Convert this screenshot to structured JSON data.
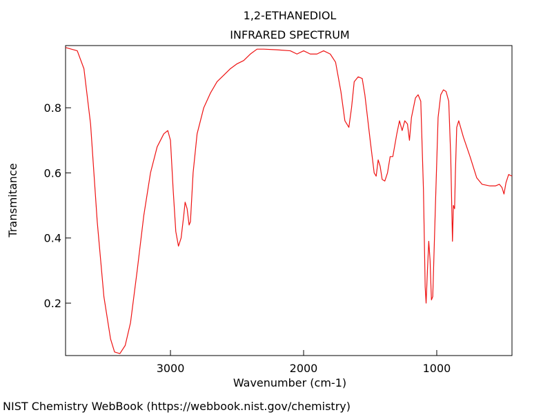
{
  "chart_data": {
    "type": "line",
    "title": "1,2-ETHANEDIOL",
    "subtitle": "INFRARED SPECTRUM",
    "x_label": "Wavenumber (cm-1)",
    "y_label": "Transmitance",
    "xlim": [
      3788,
      435
    ],
    "ylim": [
      0.039,
      0.991
    ],
    "xticks": [
      3000,
      2000,
      1000
    ],
    "yticks": [
      0.2,
      0.4,
      0.6,
      0.8
    ],
    "grid": false,
    "series": [
      {
        "color": "#ee1111",
        "x": [
          3788,
          3700,
          3650,
          3600,
          3550,
          3500,
          3450,
          3420,
          3380,
          3340,
          3300,
          3250,
          3200,
          3150,
          3100,
          3050,
          3020,
          3000,
          2980,
          2960,
          2940,
          2920,
          2900,
          2890,
          2875,
          2860,
          2850,
          2830,
          2800,
          2750,
          2700,
          2650,
          2600,
          2550,
          2500,
          2450,
          2400,
          2350,
          2300,
          2200,
          2100,
          2050,
          2000,
          1950,
          1900,
          1850,
          1800,
          1760,
          1720,
          1690,
          1660,
          1640,
          1620,
          1590,
          1560,
          1540,
          1500,
          1470,
          1455,
          1440,
          1425,
          1410,
          1390,
          1370,
          1350,
          1330,
          1300,
          1280,
          1260,
          1240,
          1220,
          1205,
          1190,
          1160,
          1140,
          1120,
          1100,
          1087,
          1080,
          1070,
          1060,
          1050,
          1040,
          1030,
          1010,
          990,
          970,
          950,
          930,
          910,
          895,
          882,
          875,
          866,
          860,
          850,
          835,
          800,
          750,
          700,
          660,
          600,
          560,
          530,
          510,
          495,
          480,
          460,
          435
        ],
        "values": [
          0.985,
          0.975,
          0.92,
          0.75,
          0.45,
          0.22,
          0.09,
          0.05,
          0.045,
          0.07,
          0.14,
          0.3,
          0.47,
          0.6,
          0.68,
          0.72,
          0.73,
          0.7,
          0.55,
          0.42,
          0.375,
          0.4,
          0.47,
          0.51,
          0.49,
          0.44,
          0.45,
          0.6,
          0.72,
          0.8,
          0.845,
          0.88,
          0.9,
          0.92,
          0.935,
          0.945,
          0.965,
          0.98,
          0.98,
          0.978,
          0.975,
          0.965,
          0.975,
          0.965,
          0.965,
          0.975,
          0.965,
          0.94,
          0.85,
          0.76,
          0.74,
          0.8,
          0.88,
          0.895,
          0.89,
          0.84,
          0.7,
          0.6,
          0.59,
          0.64,
          0.62,
          0.58,
          0.575,
          0.6,
          0.65,
          0.65,
          0.72,
          0.76,
          0.73,
          0.76,
          0.75,
          0.7,
          0.77,
          0.83,
          0.84,
          0.82,
          0.55,
          0.25,
          0.2,
          0.3,
          0.39,
          0.33,
          0.21,
          0.22,
          0.5,
          0.77,
          0.84,
          0.855,
          0.85,
          0.82,
          0.65,
          0.39,
          0.5,
          0.49,
          0.6,
          0.74,
          0.76,
          0.71,
          0.65,
          0.585,
          0.565,
          0.56,
          0.56,
          0.565,
          0.555,
          0.535,
          0.57,
          0.595,
          0.59
        ]
      }
    ]
  },
  "footer": "NIST Chemistry WebBook (https://webbook.nist.gov/chemistry)"
}
